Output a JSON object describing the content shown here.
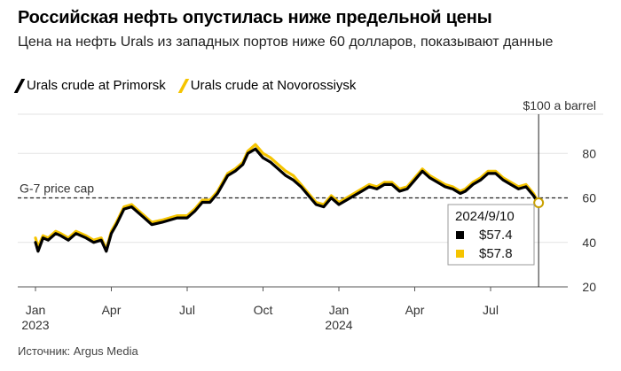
{
  "title": "Российская нефть опустилась ниже предельной цены",
  "subtitle": "Цена на нефть Urals из западных портов ниже 60 долларов, показывают данные",
  "source": "Источник: Argus Media",
  "colors": {
    "primorsk": "#000000",
    "novorossiysk": "#f5c400"
  },
  "chart_data": {
    "type": "line",
    "unit_label": "$100 a barrel",
    "ylim": [
      20,
      100
    ],
    "yticks": [
      20,
      40,
      60,
      80
    ],
    "xticks": [
      {
        "label": "Jan",
        "year": "2023",
        "month": 0
      },
      {
        "label": "Apr",
        "year": "",
        "month": 3
      },
      {
        "label": "Jul",
        "year": "",
        "month": 6
      },
      {
        "label": "Oct",
        "year": "",
        "month": 9
      },
      {
        "label": "Jan",
        "year": "2024",
        "month": 12
      },
      {
        "label": "Apr",
        "year": "",
        "month": 15
      },
      {
        "label": "Jul",
        "year": "",
        "month": 18
      }
    ],
    "reference_line": {
      "label": "G-7 price cap",
      "value": 60
    },
    "series": [
      {
        "name": "Urals crude at Primorsk",
        "color": "#000000",
        "points": [
          [
            0,
            40
          ],
          [
            0.1,
            36
          ],
          [
            0.3,
            42
          ],
          [
            0.5,
            41
          ],
          [
            0.8,
            44
          ],
          [
            1.0,
            43
          ],
          [
            1.3,
            41
          ],
          [
            1.6,
            44
          ],
          [
            2.0,
            42
          ],
          [
            2.3,
            40
          ],
          [
            2.6,
            41
          ],
          [
            2.8,
            36
          ],
          [
            3.0,
            44
          ],
          [
            3.2,
            48
          ],
          [
            3.5,
            55
          ],
          [
            3.8,
            56
          ],
          [
            4.0,
            54
          ],
          [
            4.3,
            51
          ],
          [
            4.6,
            48
          ],
          [
            5.0,
            49
          ],
          [
            5.3,
            50
          ],
          [
            5.6,
            51
          ],
          [
            6.0,
            51
          ],
          [
            6.3,
            54
          ],
          [
            6.6,
            58
          ],
          [
            6.9,
            58
          ],
          [
            7.2,
            62
          ],
          [
            7.6,
            70
          ],
          [
            7.9,
            72
          ],
          [
            8.2,
            75
          ],
          [
            8.4,
            80
          ],
          [
            8.7,
            82
          ],
          [
            9.0,
            78
          ],
          [
            9.3,
            76
          ],
          [
            9.6,
            73
          ],
          [
            9.9,
            70
          ],
          [
            10.2,
            68
          ],
          [
            10.5,
            65
          ],
          [
            10.8,
            61
          ],
          [
            11.1,
            57
          ],
          [
            11.4,
            56
          ],
          [
            11.7,
            60
          ],
          [
            12.0,
            57
          ],
          [
            12.3,
            59
          ],
          [
            12.6,
            61
          ],
          [
            12.9,
            63
          ],
          [
            13.2,
            65
          ],
          [
            13.5,
            64
          ],
          [
            13.8,
            66
          ],
          [
            14.1,
            66
          ],
          [
            14.4,
            63
          ],
          [
            14.7,
            64
          ],
          [
            15.0,
            68
          ],
          [
            15.3,
            72
          ],
          [
            15.6,
            69
          ],
          [
            15.9,
            67
          ],
          [
            16.2,
            65
          ],
          [
            16.5,
            64
          ],
          [
            16.8,
            62
          ],
          [
            17.0,
            63
          ],
          [
            17.3,
            66
          ],
          [
            17.6,
            68
          ],
          [
            17.9,
            71
          ],
          [
            18.2,
            71
          ],
          [
            18.5,
            68
          ],
          [
            18.8,
            66
          ],
          [
            19.1,
            64
          ],
          [
            19.4,
            65
          ],
          [
            19.7,
            61
          ],
          [
            19.9,
            57.4
          ]
        ]
      },
      {
        "name": "Urals crude at Novorossiysk",
        "color": "#f5c400",
        "points": [
          [
            0,
            42
          ],
          [
            0.1,
            38
          ],
          [
            0.3,
            43
          ],
          [
            0.5,
            42
          ],
          [
            0.8,
            45
          ],
          [
            1.0,
            44
          ],
          [
            1.3,
            42
          ],
          [
            1.6,
            45
          ],
          [
            2.0,
            43
          ],
          [
            2.3,
            41
          ],
          [
            2.6,
            42
          ],
          [
            2.8,
            37
          ],
          [
            3.0,
            45
          ],
          [
            3.2,
            49
          ],
          [
            3.5,
            56
          ],
          [
            3.8,
            57
          ],
          [
            4.0,
            55
          ],
          [
            4.3,
            52
          ],
          [
            4.6,
            49
          ],
          [
            5.0,
            50
          ],
          [
            5.3,
            51
          ],
          [
            5.6,
            52
          ],
          [
            6.0,
            52
          ],
          [
            6.3,
            55
          ],
          [
            6.6,
            59
          ],
          [
            6.9,
            59
          ],
          [
            7.2,
            63
          ],
          [
            7.6,
            71
          ],
          [
            7.9,
            73
          ],
          [
            8.2,
            76
          ],
          [
            8.4,
            81
          ],
          [
            8.7,
            84
          ],
          [
            9.0,
            80
          ],
          [
            9.3,
            78
          ],
          [
            9.6,
            75
          ],
          [
            9.9,
            72
          ],
          [
            10.2,
            70
          ],
          [
            10.5,
            66
          ],
          [
            10.8,
            62
          ],
          [
            11.1,
            58
          ],
          [
            11.4,
            57
          ],
          [
            11.7,
            61
          ],
          [
            12.0,
            58
          ],
          [
            12.3,
            60
          ],
          [
            12.6,
            62
          ],
          [
            12.9,
            64
          ],
          [
            13.2,
            66
          ],
          [
            13.5,
            65
          ],
          [
            13.8,
            67
          ],
          [
            14.1,
            67
          ],
          [
            14.4,
            64
          ],
          [
            14.7,
            65
          ],
          [
            15.0,
            69
          ],
          [
            15.3,
            73
          ],
          [
            15.6,
            70
          ],
          [
            15.9,
            68
          ],
          [
            16.2,
            66
          ],
          [
            16.5,
            65
          ],
          [
            16.8,
            63
          ],
          [
            17.0,
            64
          ],
          [
            17.3,
            67
          ],
          [
            17.6,
            69
          ],
          [
            17.9,
            72
          ],
          [
            18.2,
            72
          ],
          [
            18.5,
            69
          ],
          [
            18.8,
            67
          ],
          [
            19.1,
            65
          ],
          [
            19.4,
            66
          ],
          [
            19.7,
            62
          ],
          [
            19.9,
            57.8
          ]
        ]
      }
    ],
    "tooltip": {
      "date": "2024/9/10",
      "month": 19.9,
      "values": [
        {
          "series": "Urals crude at Primorsk",
          "label": "$57.4",
          "color": "#000000"
        },
        {
          "series": "Urals crude at Novorossiysk",
          "label": "$57.8",
          "color": "#f5c400"
        }
      ]
    }
  }
}
